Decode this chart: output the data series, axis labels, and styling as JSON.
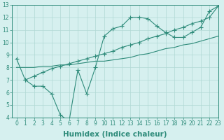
{
  "line1_x": [
    0,
    1,
    2,
    3,
    4,
    5,
    6,
    7,
    8,
    9,
    10,
    11,
    12,
    13,
    14,
    15,
    16,
    17,
    18,
    19,
    20,
    21,
    22,
    23
  ],
  "line1_y": [
    8.7,
    7.0,
    6.5,
    6.5,
    5.9,
    4.2,
    3.7,
    7.8,
    5.9,
    8.0,
    10.5,
    11.1,
    11.3,
    12.0,
    12.0,
    11.9,
    11.3,
    10.8,
    10.4,
    10.4,
    10.8,
    11.2,
    12.5,
    12.9
  ],
  "line2_x": [
    1,
    2,
    3,
    4,
    5,
    6,
    7,
    8,
    9,
    10,
    11,
    12,
    13,
    14,
    15,
    16,
    17,
    18,
    19,
    20,
    21,
    22,
    23
  ],
  "line2_y": [
    7.0,
    7.3,
    7.6,
    7.9,
    8.1,
    8.3,
    8.5,
    8.7,
    8.9,
    9.1,
    9.3,
    9.6,
    9.8,
    10.0,
    10.3,
    10.5,
    10.7,
    11.0,
    11.2,
    11.5,
    11.7,
    12.0,
    12.9
  ],
  "line3_x": [
    0,
    1,
    2,
    3,
    4,
    5,
    6,
    7,
    8,
    9,
    10,
    11,
    12,
    13,
    14,
    15,
    16,
    17,
    18,
    19,
    20,
    21,
    22,
    23
  ],
  "line3_y": [
    8.0,
    8.0,
    8.0,
    8.1,
    8.1,
    8.2,
    8.2,
    8.3,
    8.4,
    8.5,
    8.5,
    8.6,
    8.7,
    8.8,
    9.0,
    9.1,
    9.3,
    9.5,
    9.6,
    9.8,
    9.9,
    10.1,
    10.3,
    10.5
  ],
  "line_color": "#2e8b7a",
  "marker": "+",
  "marker_size": 4,
  "marker_lw": 0.8,
  "bg_color": "#d6f0ef",
  "grid_color": "#b0d8d4",
  "xlabel": "Humidex (Indice chaleur)",
  "xlim": [
    -0.5,
    23
  ],
  "ylim": [
    4,
    13
  ],
  "xticks": [
    0,
    1,
    2,
    3,
    4,
    5,
    6,
    7,
    8,
    9,
    10,
    11,
    12,
    13,
    14,
    15,
    16,
    17,
    18,
    19,
    20,
    21,
    22,
    23
  ],
  "yticks": [
    4,
    5,
    6,
    7,
    8,
    9,
    10,
    11,
    12,
    13
  ],
  "tick_fontsize": 5.5,
  "xlabel_fontsize": 7.5,
  "axis_color": "#2e8b7a"
}
